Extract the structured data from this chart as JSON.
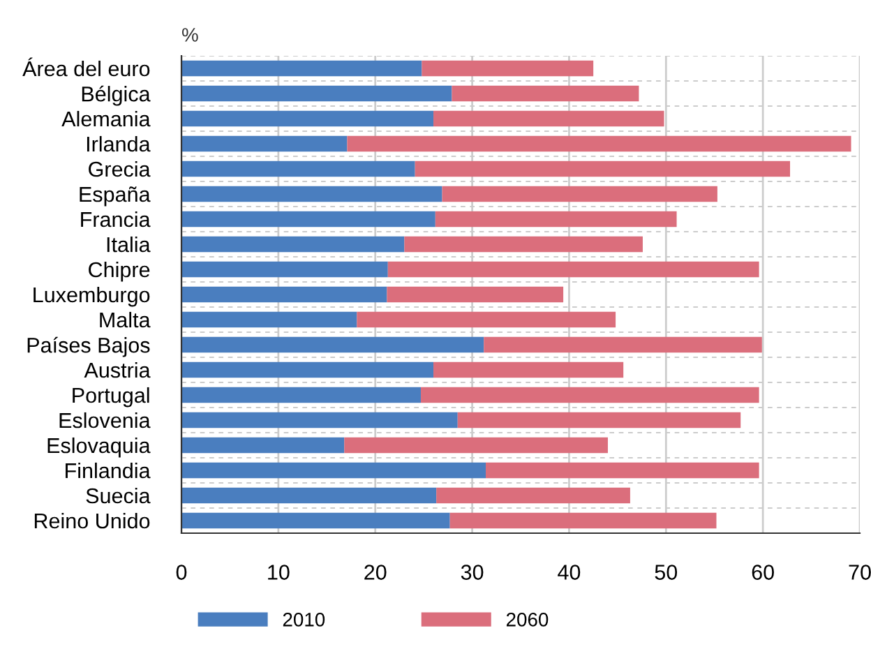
{
  "chart_data": {
    "type": "bar",
    "orientation": "horizontal",
    "stacked": true,
    "xlabel": "%",
    "categories": [
      "Área del euro",
      "Bélgica",
      "Alemania",
      "Irlanda",
      "Grecia",
      "España",
      "Francia",
      "Italia",
      "Chipre",
      "Luxemburgo",
      "Malta",
      "Países Bajos",
      "Austria",
      "Portugal",
      "Eslovenia",
      "Eslovaquia",
      "Finlandia",
      "Suecia",
      "Reino Unido"
    ],
    "series": [
      {
        "name": "2010",
        "color": "#4a7ebf",
        "values": [
          24.8,
          27.9,
          26.0,
          17.1,
          24.1,
          26.9,
          26.2,
          23.0,
          21.3,
          21.2,
          18.1,
          31.2,
          26.0,
          24.7,
          28.5,
          16.8,
          31.4,
          26.3,
          27.7
        ]
      },
      {
        "name": "2060",
        "color": "#db6e7c",
        "values": [
          17.7,
          19.3,
          23.8,
          52.0,
          38.7,
          28.4,
          24.9,
          24.6,
          38.3,
          18.2,
          26.7,
          28.7,
          19.6,
          34.9,
          29.2,
          27.2,
          28.2,
          20.0,
          27.5
        ]
      }
    ],
    "xlim": [
      0,
      70
    ],
    "xticks": [
      0,
      10,
      20,
      30,
      40,
      50,
      60,
      70
    ],
    "grid": true,
    "legend": "bottom"
  }
}
